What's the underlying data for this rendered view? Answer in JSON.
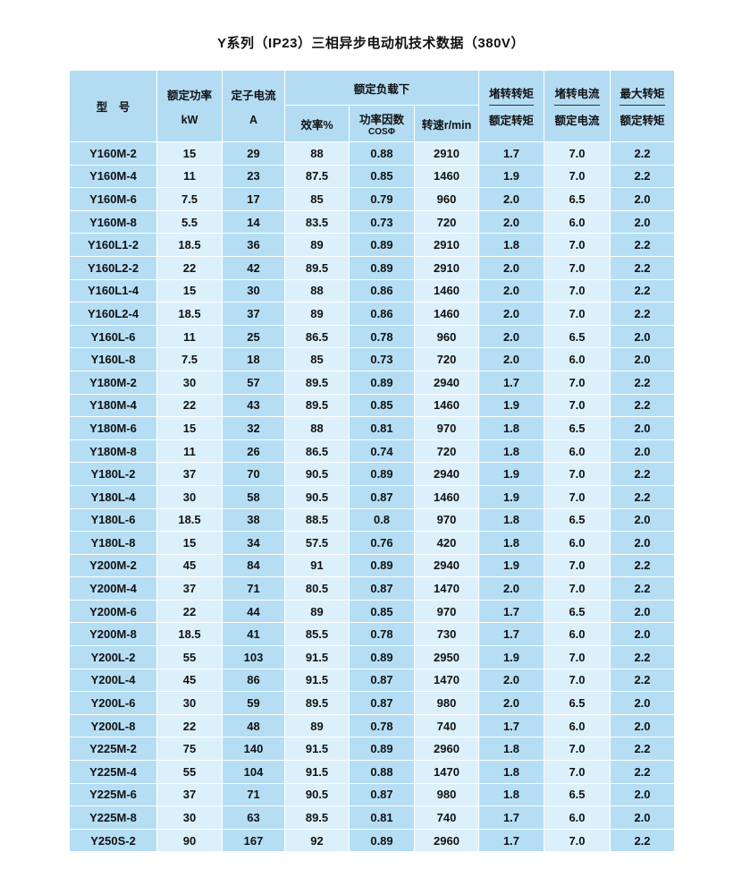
{
  "title": "Y系列（IP23）三相异步电动机技术数据（380V）",
  "header": {
    "model": "型　号",
    "power": "额定功率",
    "power_unit": "kW",
    "current": "定子电流",
    "current_unit": "A",
    "rated_load": "额定负载下",
    "efficiency": "效率%",
    "power_factor": "功率因数",
    "power_factor_sub": "COSΦ",
    "speed": "转速r/min",
    "stall_torque_top": "堵转转矩",
    "stall_torque_bottom": "额定转矩",
    "stall_current_top": "堵转电流",
    "stall_current_bottom": "额定电流",
    "max_torque_top": "最大转矩",
    "max_torque_bottom": "额定转矩"
  },
  "colors": {
    "header_bg": "#b3dcf3",
    "dark_column": "#b5def5",
    "light_column": "#dcf0fb"
  },
  "rows": [
    [
      "Y160M-2",
      "15",
      "29",
      "88",
      "0.88",
      "2910",
      "1.7",
      "7.0",
      "2.2"
    ],
    [
      "Y160M-4",
      "11",
      "23",
      "87.5",
      "0.85",
      "1460",
      "1.9",
      "7.0",
      "2.2"
    ],
    [
      "Y160M-6",
      "7.5",
      "17",
      "85",
      "0.79",
      "960",
      "2.0",
      "6.5",
      "2.0"
    ],
    [
      "Y160M-8",
      "5.5",
      "14",
      "83.5",
      "0.73",
      "720",
      "2.0",
      "6.0",
      "2.0"
    ],
    [
      "Y160L1-2",
      "18.5",
      "36",
      "89",
      "0.89",
      "2910",
      "1.8",
      "7.0",
      "2.2"
    ],
    [
      "Y160L2-2",
      "22",
      "42",
      "89.5",
      "0.89",
      "2910",
      "2.0",
      "7.0",
      "2.2"
    ],
    [
      "Y160L1-4",
      "15",
      "30",
      "88",
      "0.86",
      "1460",
      "2.0",
      "7.0",
      "2.2"
    ],
    [
      "Y160L2-4",
      "18.5",
      "37",
      "89",
      "0.86",
      "1460",
      "2.0",
      "7.0",
      "2.2"
    ],
    [
      "Y160L-6",
      "11",
      "25",
      "86.5",
      "0.78",
      "960",
      "2.0",
      "6.5",
      "2.0"
    ],
    [
      "Y160L-8",
      "7.5",
      "18",
      "85",
      "0.73",
      "720",
      "2.0",
      "6.0",
      "2.0"
    ],
    [
      "Y180M-2",
      "30",
      "57",
      "89.5",
      "0.89",
      "2940",
      "1.7",
      "7.0",
      "2.2"
    ],
    [
      "Y180M-4",
      "22",
      "43",
      "89.5",
      "0.85",
      "1460",
      "1.9",
      "7.0",
      "2.2"
    ],
    [
      "Y180M-6",
      "15",
      "32",
      "88",
      "0.81",
      "970",
      "1.8",
      "6.5",
      "2.0"
    ],
    [
      "Y180M-8",
      "11",
      "26",
      "86.5",
      "0.74",
      "720",
      "1.8",
      "6.0",
      "2.0"
    ],
    [
      "Y180L-2",
      "37",
      "70",
      "90.5",
      "0.89",
      "2940",
      "1.9",
      "7.0",
      "2.2"
    ],
    [
      "Y180L-4",
      "30",
      "58",
      "90.5",
      "0.87",
      "1460",
      "1.9",
      "7.0",
      "2.2"
    ],
    [
      "Y180L-6",
      "18.5",
      "38",
      "88.5",
      "0.8",
      "970",
      "1.8",
      "6.5",
      "2.0"
    ],
    [
      "Y180L-8",
      "15",
      "34",
      "57.5",
      "0.76",
      "420",
      "1.8",
      "6.0",
      "2.0"
    ],
    [
      "Y200M-2",
      "45",
      "84",
      "91",
      "0.89",
      "2940",
      "1.9",
      "7.0",
      "2.2"
    ],
    [
      "Y200M-4",
      "37",
      "71",
      "80.5",
      "0.87",
      "1470",
      "2.0",
      "7.0",
      "2.2"
    ],
    [
      "Y200M-6",
      "22",
      "44",
      "89",
      "0.85",
      "970",
      "1.7",
      "6.5",
      "2.0"
    ],
    [
      "Y200M-8",
      "18.5",
      "41",
      "85.5",
      "0.78",
      "730",
      "1.7",
      "6.0",
      "2.0"
    ],
    [
      "Y200L-2",
      "55",
      "103",
      "91.5",
      "0.89",
      "2950",
      "1.9",
      "7.0",
      "2.2"
    ],
    [
      "Y200L-4",
      "45",
      "86",
      "91.5",
      "0.87",
      "1470",
      "2.0",
      "7.0",
      "2.2"
    ],
    [
      "Y200L-6",
      "30",
      "59",
      "89.5",
      "0.87",
      "980",
      "2.0",
      "6.5",
      "2.0"
    ],
    [
      "Y200L-8",
      "22",
      "48",
      "89",
      "0.78",
      "740",
      "1.7",
      "6.0",
      "2.0"
    ],
    [
      "Y225M-2",
      "75",
      "140",
      "91.5",
      "0.89",
      "2960",
      "1.8",
      "7.0",
      "2.2"
    ],
    [
      "Y225M-4",
      "55",
      "104",
      "91.5",
      "0.88",
      "1470",
      "1.8",
      "7.0",
      "2.2"
    ],
    [
      "Y225M-6",
      "37",
      "71",
      "90.5",
      "0.87",
      "980",
      "1.8",
      "6.5",
      "2.0"
    ],
    [
      "Y225M-8",
      "30",
      "63",
      "89.5",
      "0.81",
      "740",
      "1.7",
      "6.0",
      "2.0"
    ],
    [
      "Y250S-2",
      "90",
      "167",
      "92",
      "0.89",
      "2960",
      "1.7",
      "7.0",
      "2.2"
    ]
  ]
}
